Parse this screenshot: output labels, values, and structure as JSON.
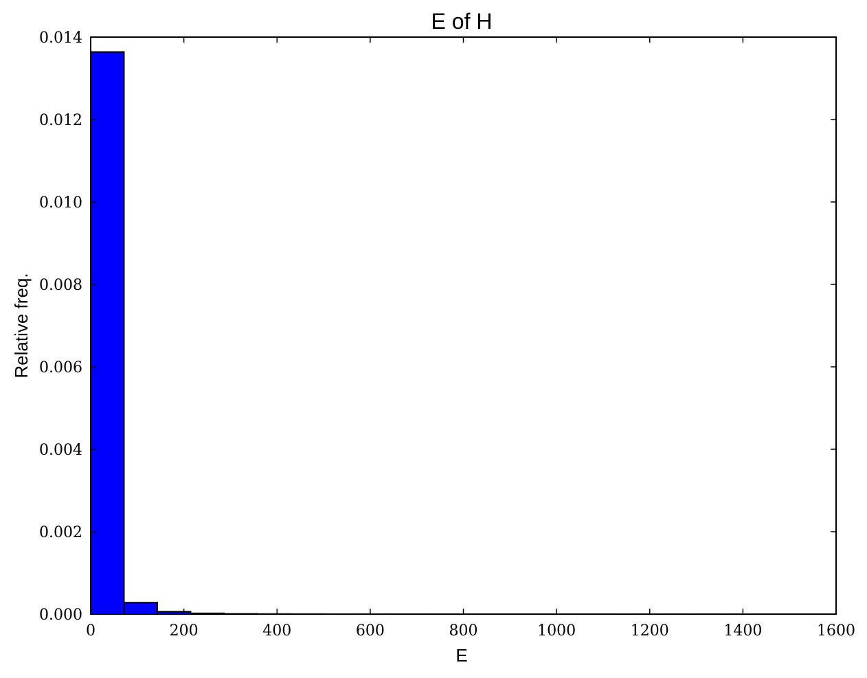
{
  "chart_data": {
    "type": "bar",
    "title": "E of H",
    "xlabel": "E",
    "ylabel": "Relative freq.",
    "xlim": [
      0,
      1600
    ],
    "ylim": [
      0,
      0.014
    ],
    "xticks": [
      0,
      200,
      400,
      600,
      800,
      1000,
      1200,
      1400,
      1600
    ],
    "yticks": [
      0.0,
      0.002,
      0.004,
      0.006,
      0.008,
      0.01,
      0.012,
      0.014
    ],
    "ytick_labels": [
      "0.000",
      "0.002",
      "0.004",
      "0.006",
      "0.008",
      "0.010",
      "0.012",
      "0.014"
    ],
    "bin_edges": [
      0,
      71.5,
      143,
      214.5,
      286,
      357.5,
      429,
      500.5,
      572,
      643.5,
      715,
      786.5,
      858,
      929.5,
      1001,
      1072.5,
      1144,
      1215.5,
      1287,
      1358.5,
      1430
    ],
    "values": [
      0.01364,
      0.00028,
      6e-05,
      2e-05,
      8e-06,
      4e-06,
      2e-06,
      1e-06,
      1e-06,
      5e-07,
      5e-07,
      3e-07,
      3e-07,
      2e-07,
      2e-07,
      1e-07,
      1e-07,
      1e-07,
      1e-07,
      1e-07
    ],
    "bar_color": "#0000ff",
    "edge_color": "#000000",
    "grid": false
  }
}
